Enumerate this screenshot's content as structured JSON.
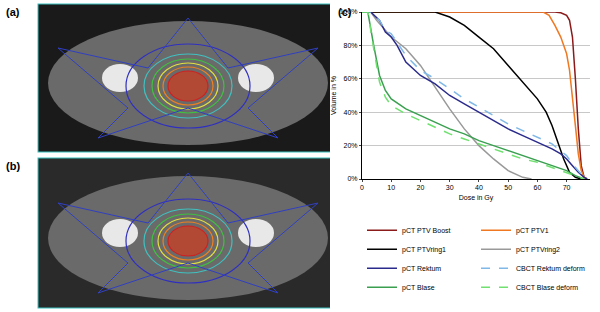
{
  "panels": [
    "(a)",
    "(b)",
    "(c)"
  ],
  "chart_data": {
    "type": "line",
    "xlabel": "Dose in Gy",
    "ylabel": "Volume in %",
    "xlim": [
      0,
      78
    ],
    "xticks": [
      0,
      10,
      20,
      30,
      40,
      50,
      60,
      70
    ],
    "ylim": [
      0,
      100
    ],
    "yticks": [
      {
        "value": 0,
        "label": "0%"
      },
      {
        "value": 20,
        "label": "20%"
      },
      {
        "value": 40,
        "label": "40%"
      },
      {
        "value": 60,
        "label": "60%"
      },
      {
        "value": 80,
        "label": "80%"
      },
      {
        "value": 100,
        "label": "100%"
      }
    ],
    "grid": true,
    "legend": "bottom",
    "series": [
      {
        "name": "pCT PTV Boost",
        "color": "#8b1a1a",
        "line_style": "solid",
        "x": [
          0,
          66,
          68,
          70,
          71,
          72,
          73,
          74,
          75,
          76,
          77
        ],
        "values": [
          100,
          100,
          99.5,
          98,
          95,
          85,
          60,
          30,
          8,
          1,
          0
        ]
      },
      {
        "name": "pCT PTV1",
        "color": "#f07820",
        "line_style": "solid",
        "x": [
          0,
          62,
          64,
          66,
          68,
          70,
          71,
          72,
          73,
          74,
          75,
          76,
          77
        ],
        "values": [
          100,
          100,
          98,
          92,
          85,
          75,
          65,
          50,
          32,
          15,
          5,
          1,
          0
        ]
      },
      {
        "name": "pCT PTVring1",
        "color": "#000000",
        "line_style": "solid",
        "x": [
          0,
          25,
          30,
          35,
          40,
          45,
          50,
          55,
          60,
          63,
          65,
          67,
          69,
          71,
          73,
          75
        ],
        "values": [
          100,
          100,
          97,
          92,
          85,
          78,
          68,
          58,
          48,
          40,
          32,
          22,
          12,
          4,
          1,
          0
        ]
      },
      {
        "name": "pCT PTVring2",
        "color": "#999999",
        "line_style": "solid",
        "x": [
          0,
          3,
          5,
          10,
          15,
          20,
          25,
          30,
          35,
          40,
          45,
          50,
          55,
          58
        ],
        "values": [
          100,
          100,
          95,
          85,
          78,
          68,
          55,
          42,
          30,
          20,
          12,
          5,
          1,
          0
        ]
      },
      {
        "name": "pCT Rektum",
        "color": "#2a2a8c",
        "line_style": "solid",
        "x": [
          0,
          3,
          6,
          8,
          10,
          12,
          15,
          20,
          25,
          30,
          35,
          40,
          45,
          50,
          55,
          60,
          65,
          68,
          70,
          72,
          74,
          76,
          77
        ],
        "values": [
          100,
          100,
          95,
          88,
          85,
          80,
          70,
          62,
          57,
          50,
          45,
          40,
          35,
          30,
          26,
          22,
          18,
          15,
          12,
          8,
          4,
          1,
          0
        ]
      },
      {
        "name": "CBCT Rektum deform",
        "color": "#80b8e8",
        "line_style": "dashed",
        "x": [
          0,
          3,
          6,
          8,
          10,
          15,
          20,
          25,
          30,
          35,
          40,
          45,
          50,
          55,
          60,
          65,
          70,
          72,
          74,
          76,
          77
        ],
        "values": [
          100,
          100,
          95,
          89,
          87,
          74,
          65,
          60,
          54,
          48,
          43,
          38,
          33,
          29,
          25,
          21,
          14,
          9,
          5,
          1,
          0
        ]
      },
      {
        "name": "pCT Blase",
        "color": "#3aa050",
        "line_style": "solid",
        "x": [
          0,
          2,
          4,
          6,
          8,
          10,
          15,
          20,
          25,
          30,
          35,
          40,
          45,
          50,
          55,
          60,
          65,
          70,
          73,
          76
        ],
        "values": [
          100,
          100,
          80,
          62,
          53,
          48,
          42,
          38,
          34,
          30,
          27,
          23,
          20,
          17,
          14,
          11,
          8,
          5,
          2,
          0
        ]
      },
      {
        "name": "CBCT Blase deform",
        "color": "#70e070",
        "line_style": "dashed",
        "x": [
          0,
          2,
          4,
          6,
          8,
          10,
          15,
          20,
          25,
          30,
          35,
          40,
          45,
          50,
          55,
          60,
          65,
          70,
          73,
          76
        ],
        "values": [
          100,
          100,
          78,
          58,
          49,
          44,
          39,
          35,
          31,
          27,
          24,
          21,
          18,
          15,
          12,
          10,
          7,
          4,
          2,
          0
        ]
      }
    ]
  }
}
